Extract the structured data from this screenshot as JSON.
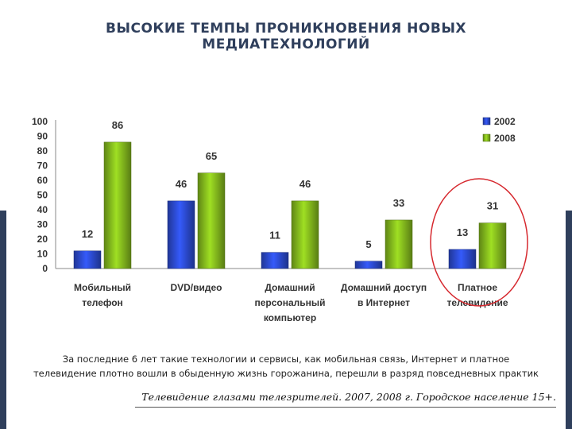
{
  "title_line1": "ВЫСОКИЕ ТЕМПЫ ПРОНИКНОВЕНИЯ НОВЫХ",
  "title_line2": "МЕДИАТЕХНОЛОГИЙ",
  "caption_line1": "За последние 6 лет такие технологии и сервисы, как мобильная связь, Интернет и платное",
  "caption_line2": "телевидение плотно вошли в обыденную жизнь горожанина, перешли в разряд повседневных практик",
  "source": "Телевидение глазами телезрителей. 2007, 2008 г. Городское население 15+.",
  "chart_data": {
    "type": "bar",
    "categories": [
      [
        "Мобильный",
        "телефон"
      ],
      [
        "DVD/видео"
      ],
      [
        "Домашний",
        "персональный",
        "компьютер"
      ],
      [
        "Домашний доступ",
        "в Интернет"
      ],
      [
        "Платное",
        "телевидение"
      ]
    ],
    "series": [
      {
        "name": "2002",
        "values": [
          12,
          46,
          11,
          5,
          13
        ],
        "color": "#2a48c8"
      },
      {
        "name": "2008",
        "values": [
          86,
          65,
          46,
          33,
          31
        ],
        "color": "#7fb21c"
      }
    ],
    "y_ticks": [
      "0",
      "10",
      "20",
      "30",
      "40",
      "50",
      "60",
      "70",
      "80",
      "90",
      "100"
    ],
    "ylim": [
      0,
      100
    ],
    "legend_position": "top-right",
    "highlight_category_index": 4,
    "highlight_color": "#d6282e"
  }
}
